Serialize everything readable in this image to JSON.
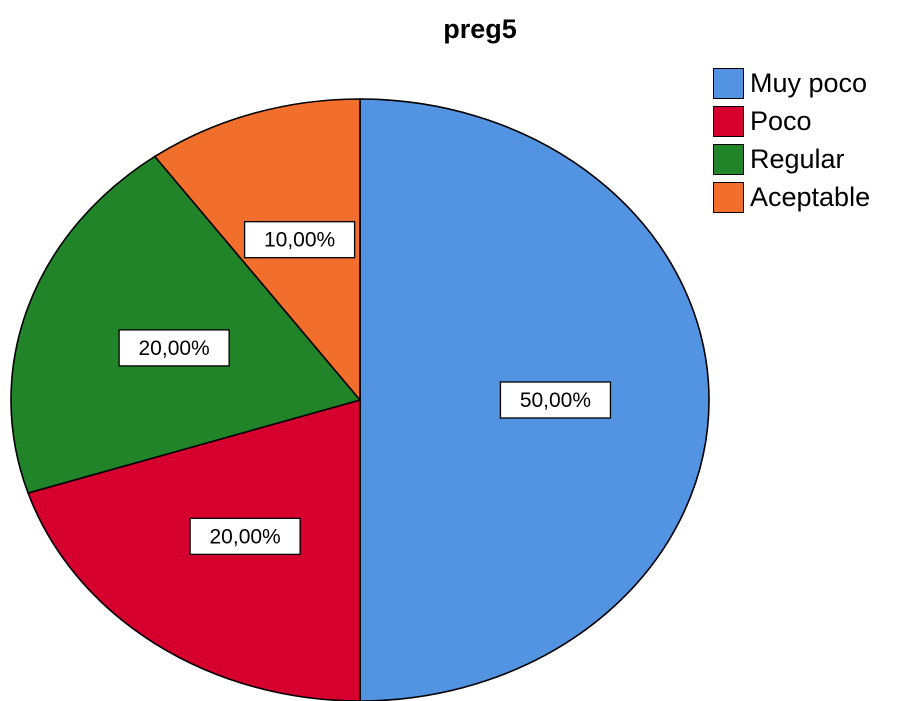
{
  "chart_data": {
    "type": "pie",
    "title": "preg5",
    "categories": [
      "Muy poco",
      "Poco",
      "Regular",
      "Aceptable"
    ],
    "values": [
      50,
      20,
      20,
      10
    ],
    "data_labels": [
      "50,00%",
      "20,00%",
      "20,00%",
      "10,00%"
    ],
    "colors": [
      "#5294e2",
      "#d6002f",
      "#228428",
      "#f26e2c"
    ],
    "start_angle_deg": 0,
    "direction": "clockwise",
    "legend_position": "top-right",
    "slice_border_color": "#000000"
  }
}
